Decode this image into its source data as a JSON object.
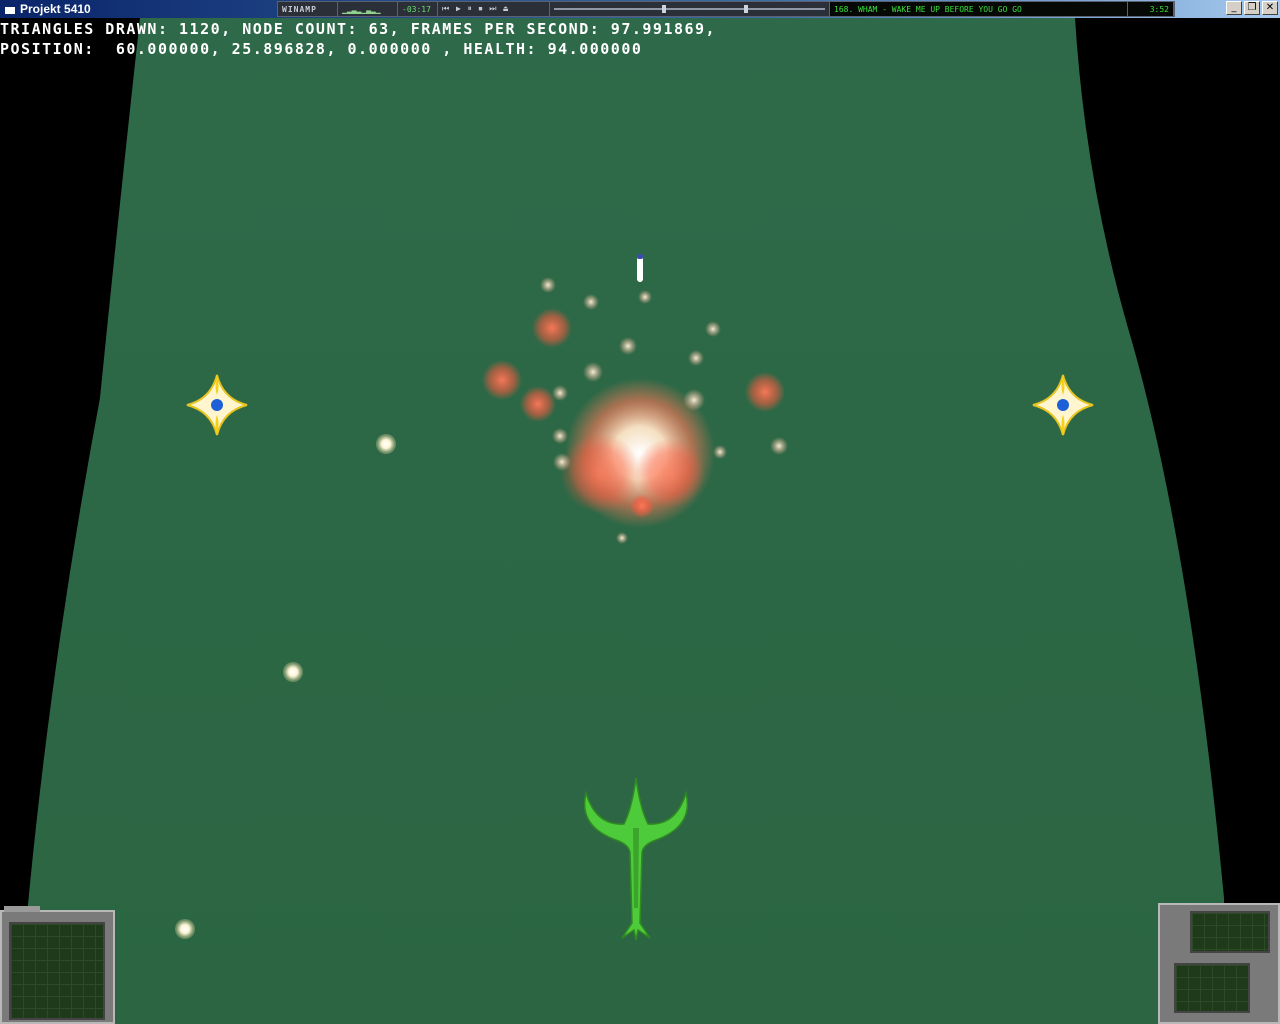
{
  "window": {
    "title": "Projekt 5410",
    "buttons": {
      "minimize": "_",
      "restore": "❐",
      "close": "✕"
    }
  },
  "winamp": {
    "logo": "WINAMP",
    "vis": "▁▂▃▂▁▃▂▁",
    "time": "-03:17",
    "controls": "⏮ ▶ ⏸ ⏹ ⏭ ⏏",
    "song": "168. WHAM - WAKE ME UP BEFORE YOU GO GO",
    "clock": "3:52"
  },
  "hud": {
    "line1": "TRIANGLES DRAWN: 1120, NODE COUNT: 63, FRAMES PER SECOND: 97.991869,",
    "line2": "POSITION:  60.000000, 25.896828, 0.000000 , HEALTH: 94.000000"
  },
  "game": {
    "triangles_drawn": 1120,
    "node_count": 63,
    "fps": 97.991869,
    "position": [
      60.0,
      25.896828,
      0.0
    ],
    "health": 94.0
  },
  "colors": {
    "ground": "#2f6a47",
    "player_ship": "#4ecb3a",
    "enemy_body": "#fff6d0",
    "enemy_core": "#1d5fd6",
    "explosion": "#ff6a4a"
  },
  "icons": {
    "player": "player-ship-icon",
    "enemy": "enemy-star-icon",
    "missile": "missile-icon",
    "explosion": "explosion-icon"
  }
}
